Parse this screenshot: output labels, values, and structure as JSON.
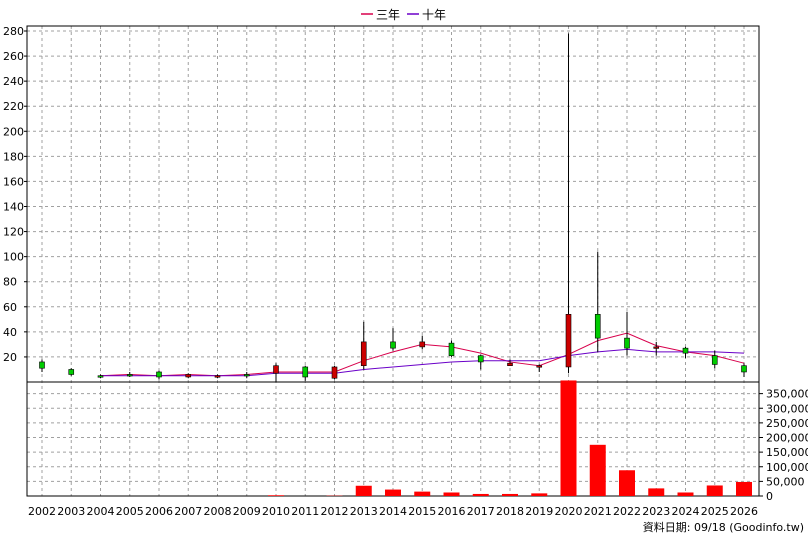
{
  "chart_data": {
    "type": "candlestick+line+bar",
    "legend": [
      {
        "name": "三年",
        "color": "#d8004c"
      },
      {
        "name": "十年",
        "color": "#6a00c8"
      }
    ],
    "price_axis": {
      "ylim": [
        0,
        280
      ],
      "ticks": [
        20,
        40,
        60,
        80,
        100,
        120,
        140,
        160,
        180,
        200,
        220,
        240,
        260,
        280
      ]
    },
    "volume_axis": {
      "ylim": [
        0,
        400000
      ],
      "ticks": [
        0,
        50000,
        100000,
        150000,
        200000,
        250000,
        300000,
        350000
      ],
      "tick_labels": [
        "0",
        "50,000",
        "100,000",
        "150,000",
        "200,000",
        "250,000",
        "300,000",
        "350,000"
      ]
    },
    "categories": [
      "2002",
      "2003",
      "2004",
      "2005",
      "2006",
      "2007",
      "2008",
      "2009",
      "2010",
      "2011",
      "2012",
      "2013",
      "2014",
      "2015",
      "2016",
      "2017",
      "2018",
      "2019",
      "2020",
      "2021",
      "2022",
      "2023",
      "2024",
      "2025",
      "2026"
    ],
    "candles": [
      {
        "open": 11,
        "high": 18,
        "low": 8,
        "close": 16
      },
      {
        "open": 6,
        "high": 11,
        "low": 5,
        "close": 10
      },
      {
        "open": 4,
        "high": 6,
        "low": 3,
        "close": 5
      },
      {
        "open": 5,
        "high": 8,
        "low": 4,
        "close": 6
      },
      {
        "open": 4,
        "high": 9,
        "low": 2,
        "close": 8
      },
      {
        "open": 6,
        "high": 7,
        "low": 3,
        "close": 4
      },
      {
        "open": 5,
        "high": 6,
        "low": 3,
        "close": 4
      },
      {
        "open": 5,
        "high": 8,
        "low": 3,
        "close": 6
      },
      {
        "open": 13,
        "high": 15,
        "low": 0,
        "close": 7
      },
      {
        "open": 4,
        "high": 13,
        "low": 1,
        "close": 12
      },
      {
        "open": 12,
        "high": 13,
        "low": 2,
        "close": 3
      },
      {
        "open": 32,
        "high": 48,
        "low": 10,
        "close": 13
      },
      {
        "open": 27,
        "high": 43,
        "low": 25,
        "close": 32
      },
      {
        "open": 32,
        "high": 37,
        "low": 26,
        "close": 28
      },
      {
        "open": 21,
        "high": 33,
        "low": 20,
        "close": 31
      },
      {
        "open": 16,
        "high": 22,
        "low": 10,
        "close": 21
      },
      {
        "open": 15,
        "high": 18,
        "low": 13,
        "close": 13
      },
      {
        "open": 13,
        "high": 14,
        "low": 8,
        "close": 12
      },
      {
        "open": 54,
        "high": 278,
        "low": 7,
        "close": 12
      },
      {
        "open": 35,
        "high": 104,
        "low": 24,
        "close": 54
      },
      {
        "open": 27,
        "high": 56,
        "low": 21,
        "close": 35
      },
      {
        "open": 28,
        "high": 32,
        "low": 21,
        "close": 27
      },
      {
        "open": 23,
        "high": 28,
        "low": 19,
        "close": 27
      },
      {
        "open": 14,
        "high": 25,
        "low": 11,
        "close": 21
      },
      {
        "open": 8,
        "high": 15,
        "low": 4,
        "close": 13
      }
    ],
    "series": [
      {
        "name": "三年",
        "values": [
          null,
          null,
          5,
          6,
          5,
          6,
          5,
          6,
          8,
          8,
          8,
          17,
          24,
          30,
          28,
          23,
          16,
          13,
          22,
          33,
          39,
          29,
          24,
          21,
          15
        ]
      },
      {
        "name": "十年",
        "values": [
          null,
          null,
          5,
          5,
          5,
          5,
          5,
          5,
          7,
          7,
          7,
          10,
          12,
          14,
          16,
          17,
          17,
          17,
          21,
          24,
          26,
          24,
          24,
          24,
          23
        ]
      }
    ],
    "volume": [
      0,
      0,
      0,
      0,
      0,
      0,
      0,
      0,
      2500,
      0,
      1000,
      35000,
      22000,
      15000,
      12000,
      7000,
      7000,
      9000,
      395000,
      175000,
      88000,
      26000,
      12000,
      36000,
      48000
    ]
  },
  "footer": {
    "text": "資料日期: 09/18   (Goodinfo.tw)"
  },
  "colors": {
    "up": "#00cc00",
    "down": "#cc0000",
    "volume": "#ff0000",
    "grid": "#a0a0a0"
  }
}
